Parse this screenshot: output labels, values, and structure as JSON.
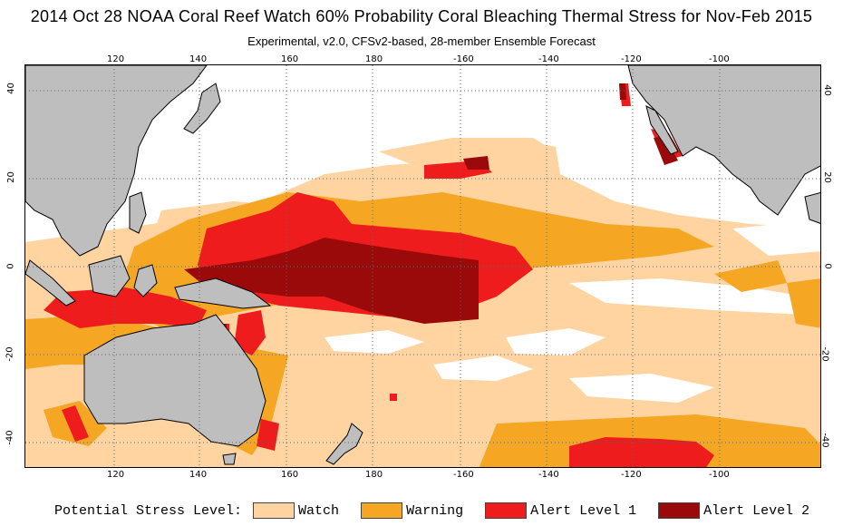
{
  "title": "2014 Oct 28 NOAA Coral Reef Watch 60% Probability Coral Bleaching Thermal Stress for Nov-Feb 2015",
  "subtitle": "Experimental, v2.0, CFSv2-based, 28-member Ensemble Forecast",
  "axes": {
    "lon_ticks": [
      "120",
      "140",
      "160",
      "180",
      "-160",
      "-140",
      "-120",
      "-100"
    ],
    "lat_ticks_left": [
      "40",
      "20",
      "0",
      "-20",
      "-40"
    ],
    "lat_ticks_right": [
      "40",
      "20",
      "0",
      "-20",
      "-40"
    ]
  },
  "legend": {
    "label": "Potential Stress Level:",
    "items": [
      {
        "label": "Watch",
        "color": "#FFD4A0"
      },
      {
        "label": "Warning",
        "color": "#F5A623"
      },
      {
        "label": "Alert Level 1",
        "color": "#EE1C1C"
      },
      {
        "label": "Alert Level 2",
        "color": "#9B0A0A"
      }
    ]
  },
  "colors": {
    "land": "#BEBEBE",
    "no_stress": "#FFFFFF",
    "watch": "#FFD4A0",
    "warning": "#F5A623",
    "alert1": "#EE1C1C",
    "alert2": "#9B0A0A"
  }
}
